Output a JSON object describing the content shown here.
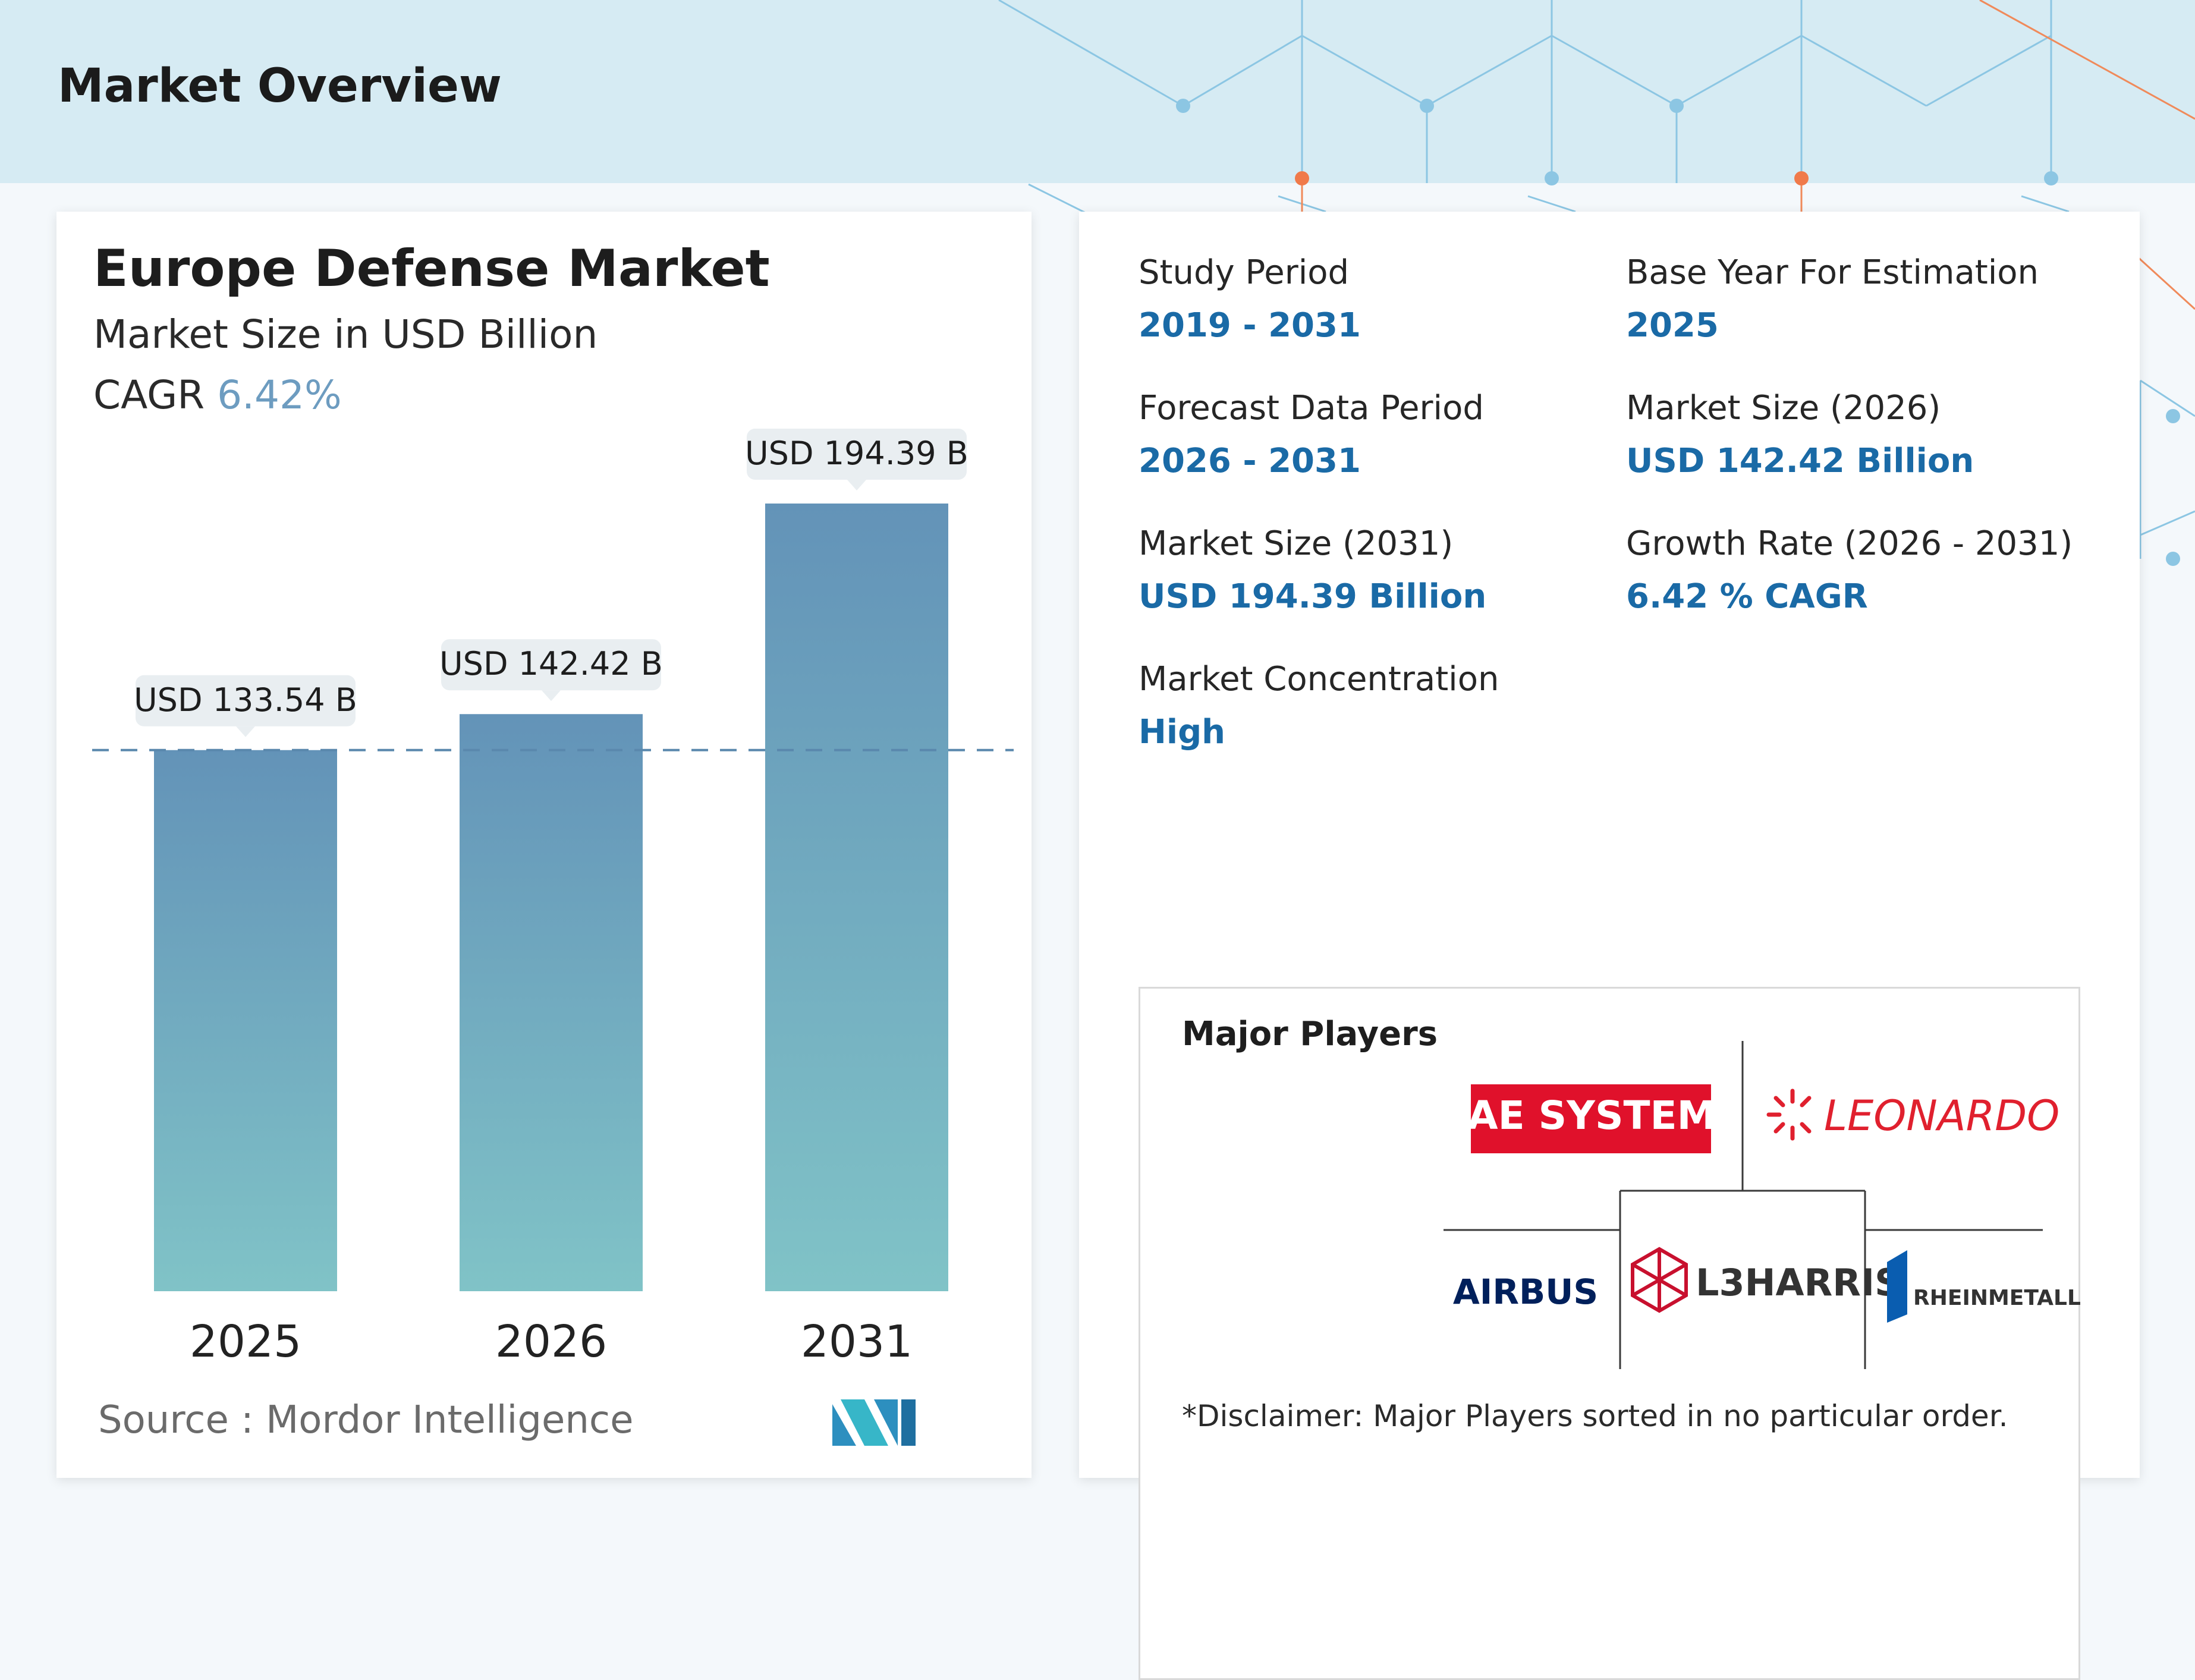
{
  "page": {
    "title": "Market Overview"
  },
  "colors": {
    "header_bg": "#d6ebf3",
    "accent_blue": "#1a6aa6",
    "bar_top": "#6393b8",
    "bar_bottom": "#80c3c7",
    "cagr_color": "#6d9cc0",
    "bae_red": "#e0112b",
    "leonardo_red": "#e0202e",
    "airbus_blue": "#00205b"
  },
  "chart_data": {
    "type": "bar",
    "title": "Europe Defense Market",
    "subtitle": "Market Size in USD Billion",
    "cagr_label": "CAGR",
    "cagr_value": "6.42%",
    "categories": [
      "2025",
      "2026",
      "2031"
    ],
    "values": [
      133.54,
      142.42,
      194.39
    ],
    "data_labels": [
      "USD 133.54 B",
      "USD 142.42 B",
      "USD 194.39 B"
    ],
    "ylim": [
      0,
      200
    ],
    "reference_line": 133.54,
    "xlabel": "",
    "ylabel": "",
    "grid": false,
    "source": "Source :  Mordor Intelligence"
  },
  "stats": [
    {
      "label": "Study Period",
      "value": "2019 - 2031"
    },
    {
      "label": "Base Year For Estimation",
      "value": "2025"
    },
    {
      "label": "Forecast Data Period",
      "value": "2026 - 2031"
    },
    {
      "label": "Market Size (2026)",
      "value": "USD 142.42 Billion"
    },
    {
      "label": "Market Size (2031)",
      "value": "USD 194.39 Billion"
    },
    {
      "label": "Growth Rate (2026 - 2031)",
      "value": "6.42 % CAGR"
    },
    {
      "label": "Market Concentration",
      "value": "High"
    }
  ],
  "players": {
    "title": "Major Players",
    "logos": [
      "BAE SYSTEMS",
      "LEONARDO",
      "AIRBUS",
      "L3HARRIS",
      "RHEINMETALL"
    ],
    "logo_icons": [
      "leonardo-burst-icon",
      "l3harris-globe-icon",
      "rheinmetall-mark-icon"
    ],
    "disclaimer": "*Disclaimer: Major Players sorted in no particular order."
  }
}
